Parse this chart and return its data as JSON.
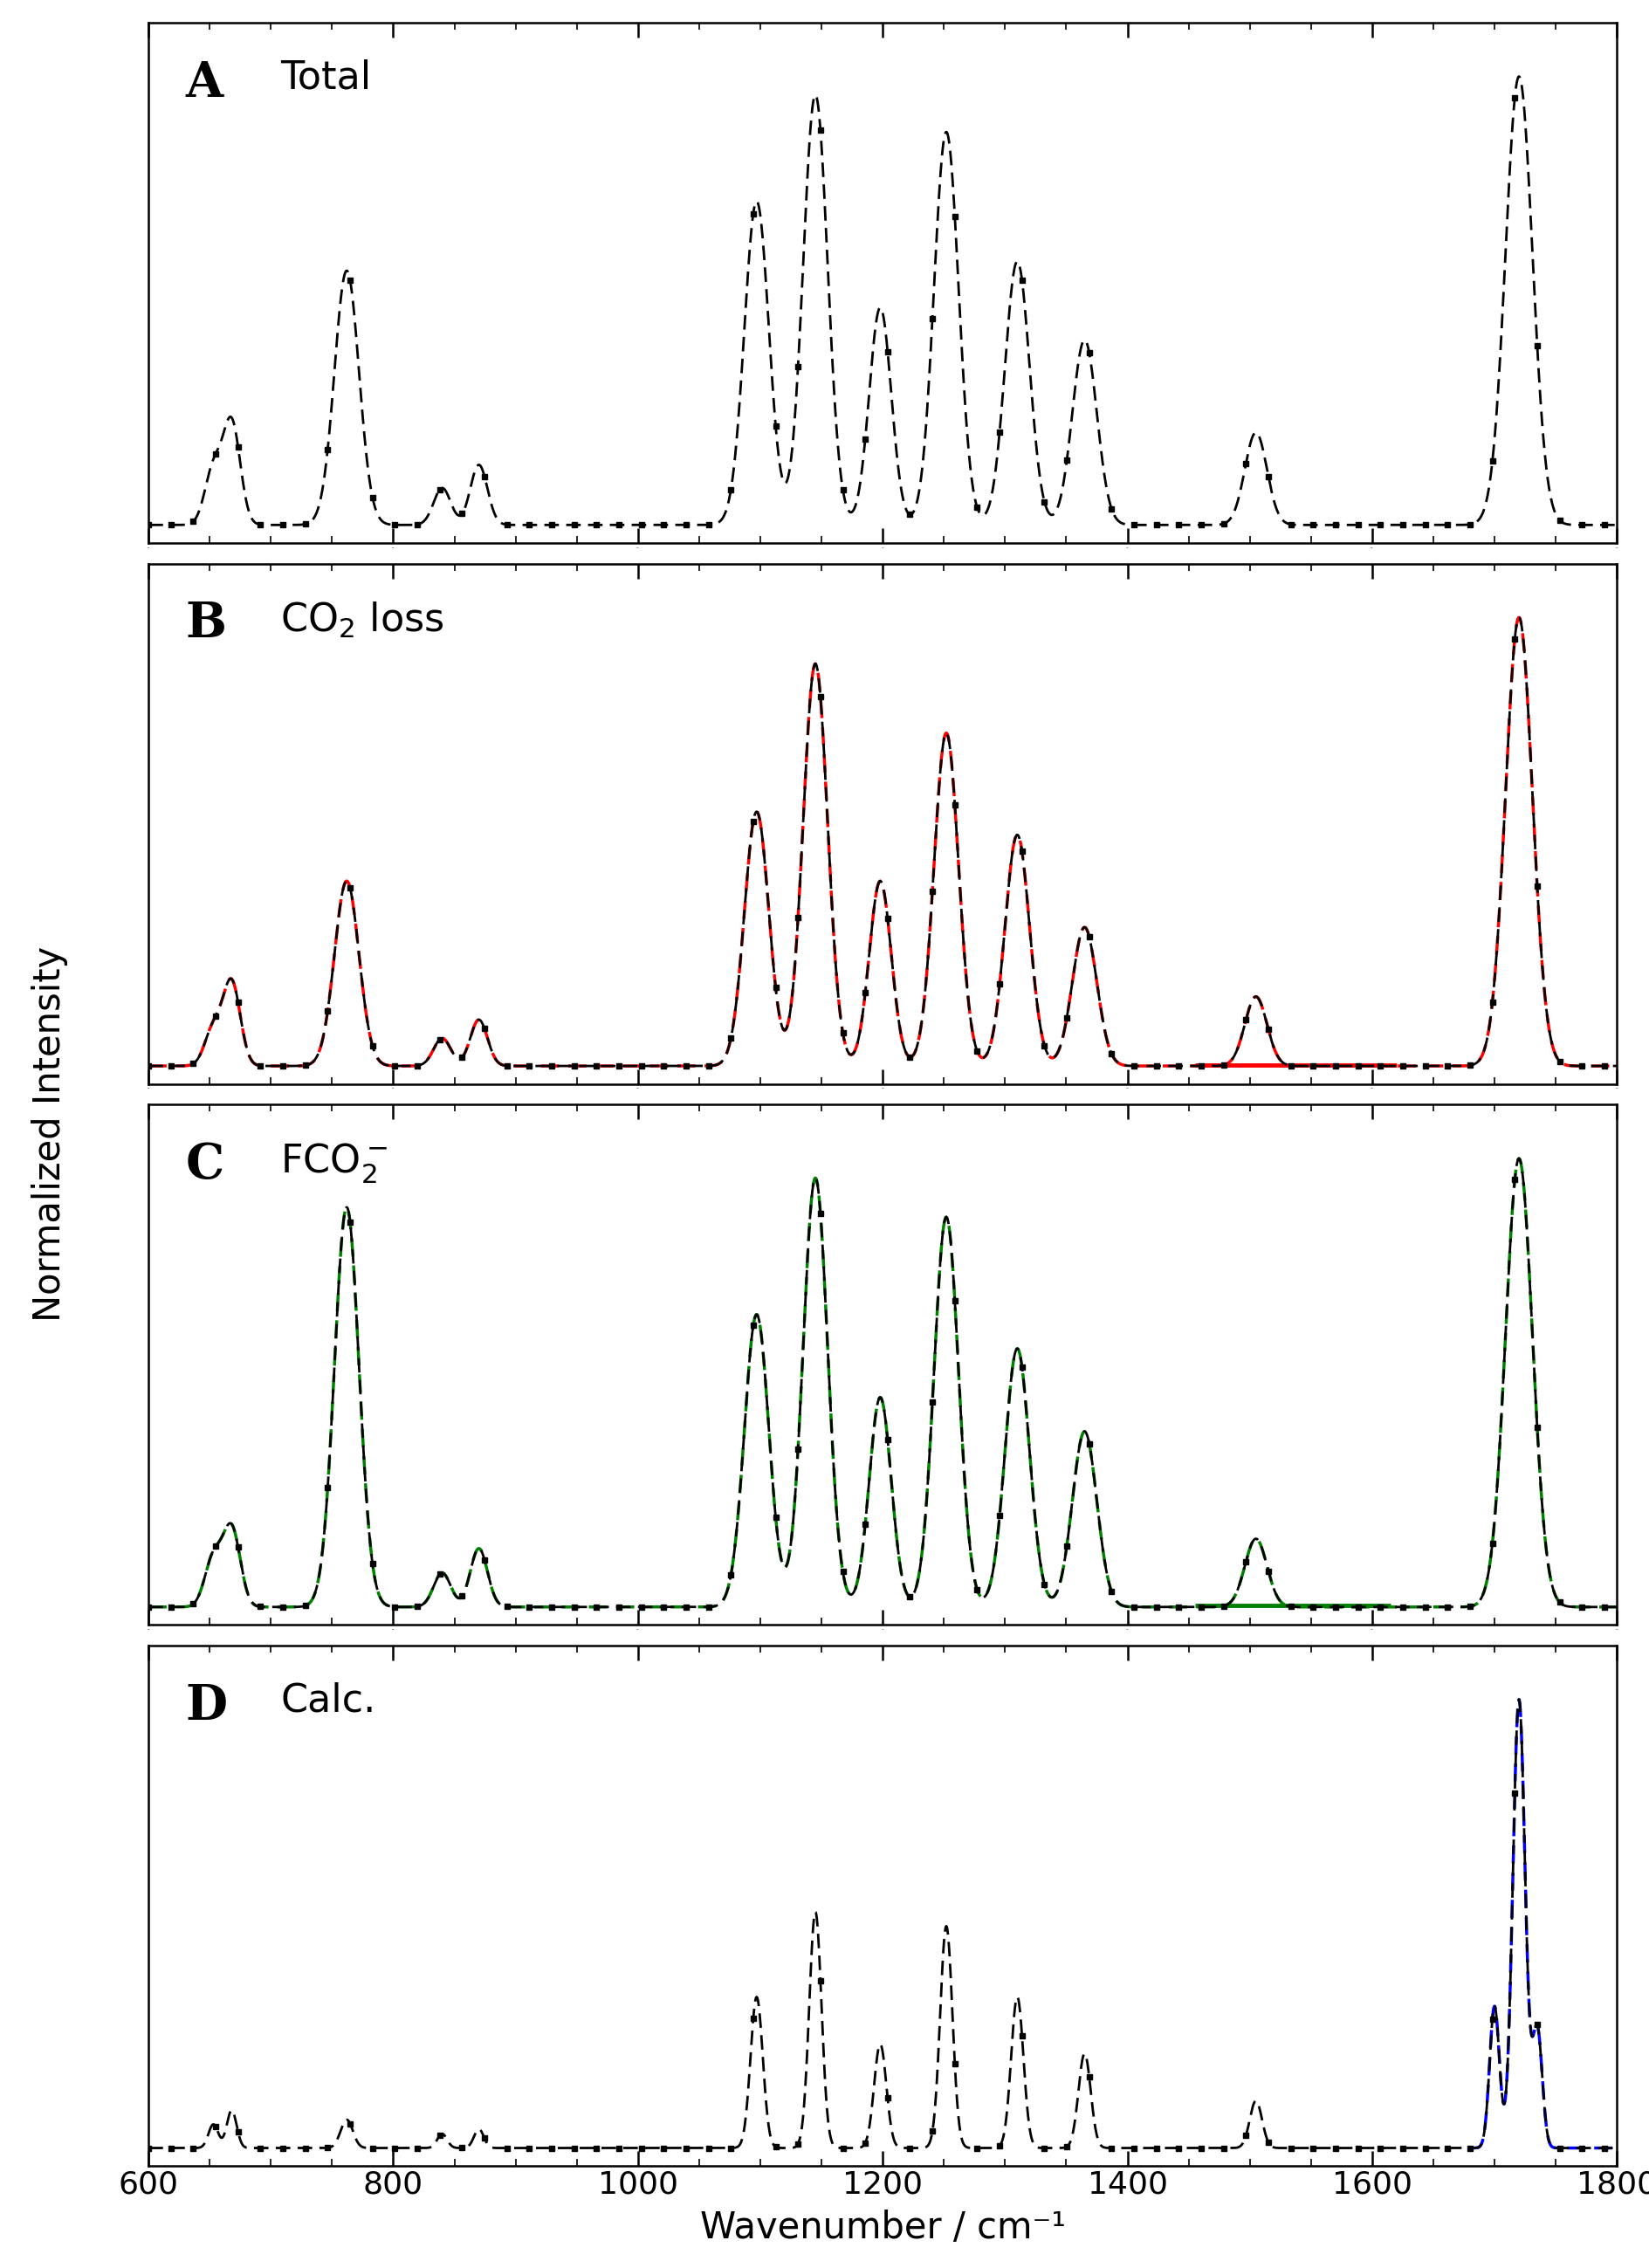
{
  "xlabel": "Wavenumber / cm⁻¹",
  "ylabel": "Normalized Intensity",
  "xlim": [
    600,
    1800
  ],
  "panels": [
    {
      "label": "A",
      "sublabel": "Total",
      "line_color": null
    },
    {
      "label": "B",
      "sublabel": "CO$_2$ loss",
      "line_color": "#ff0000"
    },
    {
      "label": "C",
      "sublabel": "FCO$_2^-$",
      "line_color": "#008000"
    },
    {
      "label": "D",
      "sublabel": "Calc.",
      "line_color": "#0000ff"
    }
  ],
  "peaks_A": {
    "centers": [
      653,
      668,
      762,
      840,
      870,
      1097,
      1145,
      1198,
      1252,
      1310,
      1365,
      1505,
      1720
    ],
    "heights": [
      0.12,
      0.22,
      0.55,
      0.08,
      0.13,
      0.7,
      0.93,
      0.47,
      0.85,
      0.57,
      0.4,
      0.2,
      0.97
    ],
    "widths": [
      7,
      7,
      10,
      7,
      7,
      10,
      10,
      9,
      10,
      10,
      10,
      9,
      11
    ]
  },
  "peaks_B": {
    "centers": [
      653,
      668,
      762,
      840,
      870,
      1097,
      1145,
      1198,
      1252,
      1310,
      1365,
      1505,
      1720
    ],
    "heights": [
      0.08,
      0.18,
      0.4,
      0.06,
      0.1,
      0.55,
      0.87,
      0.4,
      0.72,
      0.5,
      0.3,
      0.15,
      0.97
    ],
    "widths": [
      7,
      7,
      10,
      7,
      7,
      10,
      10,
      9,
      10,
      10,
      10,
      9,
      11
    ]
  },
  "peaks_C": {
    "centers": [
      653,
      668,
      762,
      840,
      870,
      1097,
      1145,
      1198,
      1252,
      1310,
      1365,
      1505,
      1720
    ],
    "heights": [
      0.1,
      0.16,
      0.82,
      0.07,
      0.12,
      0.6,
      0.88,
      0.43,
      0.8,
      0.53,
      0.36,
      0.14,
      0.92
    ],
    "widths": [
      7,
      7,
      10,
      7,
      7,
      10,
      10,
      9,
      10,
      10,
      10,
      9,
      11
    ]
  },
  "peaks_D": {
    "centers": [
      653,
      668,
      762,
      840,
      870,
      1097,
      1145,
      1198,
      1252,
      1310,
      1365,
      1505,
      1700,
      1720,
      1735
    ],
    "heights": [
      0.05,
      0.08,
      0.06,
      0.03,
      0.04,
      0.32,
      0.5,
      0.22,
      0.47,
      0.32,
      0.2,
      0.1,
      0.3,
      0.95,
      0.25
    ],
    "widths": [
      4,
      4,
      5,
      4,
      4,
      5,
      5,
      5,
      5,
      5,
      5,
      5,
      4,
      5,
      4
    ]
  },
  "baseline_B": [
    1455,
    1620
  ],
  "baseline_C": [
    1455,
    1615
  ],
  "background_color": "#ffffff"
}
